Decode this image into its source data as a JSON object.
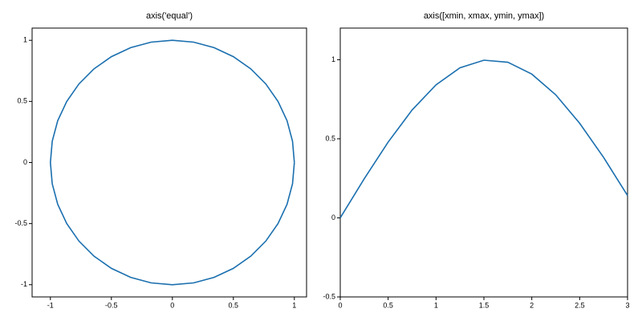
{
  "chart_data": [
    {
      "type": "line",
      "title": "axis('equal')",
      "series": [
        {
          "color": "#1a6faf",
          "x": [
            1,
            0.985,
            0.94,
            0.866,
            0.766,
            0.643,
            0.5,
            0.342,
            0.174,
            0,
            -0.174,
            -0.342,
            -0.5,
            -0.643,
            -0.766,
            -0.866,
            -0.94,
            -0.985,
            -1,
            -0.985,
            -0.94,
            -0.866,
            -0.766,
            -0.643,
            -0.5,
            -0.342,
            -0.174,
            0,
            0.174,
            0.342,
            0.5,
            0.643,
            0.766,
            0.866,
            0.94,
            0.985,
            1
          ],
          "values": [
            0,
            0.174,
            0.342,
            0.5,
            0.643,
            0.766,
            0.866,
            0.94,
            0.985,
            1,
            0.985,
            0.94,
            0.866,
            0.766,
            0.643,
            0.5,
            0.342,
            0.174,
            0,
            -0.174,
            -0.342,
            -0.5,
            -0.643,
            -0.766,
            -0.866,
            -0.94,
            -0.985,
            -1,
            -0.985,
            -0.94,
            -0.866,
            -0.766,
            -0.643,
            -0.5,
            -0.342,
            -0.174,
            0
          ]
        }
      ],
      "xlim": [
        -1.15,
        1.1
      ],
      "ylim": [
        -1.1,
        1.1
      ],
      "xticks": [
        -1,
        -0.5,
        0,
        0.5,
        1
      ],
      "yticks": [
        -1,
        -0.5,
        0,
        0.5,
        1
      ]
    },
    {
      "type": "line",
      "title": "axis([xmin, xmax, ymin, ymax])",
      "series": [
        {
          "color": "#1a6faf",
          "x": [
            0,
            0.25,
            0.5,
            0.75,
            1,
            1.25,
            1.5,
            1.75,
            2,
            2.25,
            2.5,
            2.75,
            3
          ],
          "values": [
            0,
            0.247,
            0.479,
            0.682,
            0.841,
            0.949,
            0.997,
            0.984,
            0.909,
            0.778,
            0.598,
            0.382,
            0.141
          ]
        }
      ],
      "xlim": [
        0,
        3
      ],
      "ylim": [
        -0.5,
        1.2
      ],
      "xticks": [
        0,
        0.5,
        1,
        1.5,
        2,
        2.5,
        3
      ],
      "yticks": [
        -0.5,
        0,
        0.5,
        1
      ]
    }
  ]
}
